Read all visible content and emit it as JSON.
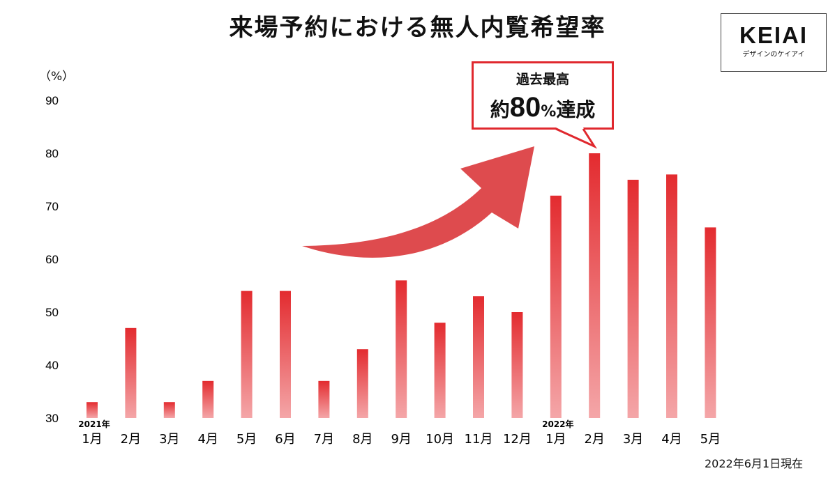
{
  "title": "来場予約における無人内覧希望率",
  "logo": {
    "main": "KEIAI",
    "sub": "デザインのケイアイ"
  },
  "unit_label": "（%）",
  "callout": {
    "line1": "過去最高",
    "prefix": "約",
    "value": "80",
    "percent": "%",
    "suffix": "達成"
  },
  "footnote": "2022年6月1日現在",
  "colors": {
    "bar_top": "#e32b2f",
    "bar_bottom": "#f4a6a8",
    "arrow": "#de4b4e",
    "callout_border": "#e0282e"
  },
  "chart_data": {
    "type": "bar",
    "categories": [
      "1月",
      "2月",
      "3月",
      "4月",
      "5月",
      "6月",
      "7月",
      "8月",
      "9月",
      "10月",
      "11月",
      "12月",
      "1月",
      "2月",
      "3月",
      "4月",
      "5月"
    ],
    "year_labels": [
      {
        "index": 0,
        "text": "2021年"
      },
      {
        "index": 12,
        "text": "2022年"
      }
    ],
    "values": [
      33,
      47,
      33,
      37,
      54,
      54,
      37,
      43,
      56,
      48,
      53,
      50,
      72,
      80,
      75,
      76,
      66
    ],
    "yticks": [
      30,
      40,
      50,
      60,
      70,
      80,
      90
    ],
    "ylim": [
      30,
      90
    ],
    "grid": false
  }
}
